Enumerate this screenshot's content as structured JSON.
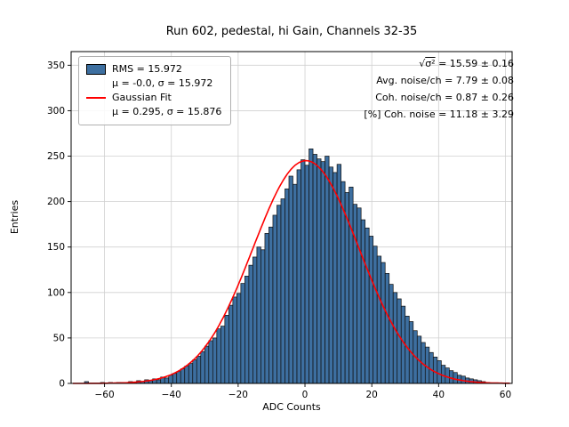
{
  "title": "Run 602, pedestal, hi Gain, Channels 32-35",
  "axes": {
    "xlabel": "ADC Counts",
    "ylabel": "Entries",
    "xlim": [
      -70,
      62
    ],
    "ylim": [
      0,
      365
    ],
    "xticks": [
      -60,
      -40,
      -20,
      0,
      20,
      40,
      60
    ],
    "yticks": [
      0,
      50,
      100,
      150,
      200,
      250,
      300,
      350
    ]
  },
  "legend": {
    "entries": [
      {
        "type": "patch",
        "color": "#3d6fa0",
        "line1": "RMS = 15.972",
        "line2": "μ = -0.0, σ = 15.972"
      },
      {
        "type": "line",
        "color": "#ff0000",
        "line1": "Gaussian Fit",
        "line2": "μ = 0.295, σ = 15.876"
      }
    ]
  },
  "annotations": {
    "line1_prefix": "√",
    "line1_radicand": "σ²",
    "line1_rest": " = 15.59 ± 0.16",
    "lines": [
      "Avg. noise/ch = 7.79 ± 0.08",
      "Coh. noise/ch = 0.87 ± 0.26",
      "[%] Coh. noise = 11.18 ± 3.29"
    ]
  },
  "chart_data": {
    "type": "bar",
    "subtype": "histogram-with-gaussian-fit",
    "title": "Run 602, pedestal, hi Gain, Channels 32-35",
    "xlabel": "ADC Counts",
    "ylabel": "Entries",
    "xlim": [
      -70,
      62
    ],
    "ylim": [
      0,
      365
    ],
    "grid": true,
    "legend_position": "upper-left",
    "bin_start": -66.0,
    "bin_width": 1.2,
    "counts": [
      2,
      0,
      0,
      0,
      1,
      0,
      1,
      0,
      1,
      1,
      1,
      2,
      1,
      3,
      2,
      4,
      3,
      5,
      4,
      7,
      6,
      9,
      11,
      13,
      16,
      19,
      22,
      26,
      30,
      35,
      41,
      47,
      50,
      60,
      63,
      75,
      86,
      95,
      99,
      110,
      118,
      130,
      139,
      150,
      147,
      165,
      172,
      185,
      196,
      203,
      214,
      228,
      219,
      235,
      246,
      240,
      258,
      252,
      247,
      244,
      250,
      238,
      232,
      241,
      222,
      210,
      216,
      197,
      193,
      180,
      171,
      162,
      151,
      140,
      133,
      121,
      109,
      100,
      93,
      85,
      74,
      68,
      58,
      52,
      45,
      40,
      34,
      29,
      25,
      20,
      17,
      14,
      12,
      9,
      8,
      6,
      5,
      4,
      3,
      2,
      1
    ],
    "histogram_stats": {
      "rms": 15.972,
      "mu": -0.0,
      "sigma": 15.972
    },
    "fit": {
      "name": "Gaussian Fit",
      "mu": 0.295,
      "sigma": 15.876,
      "amplitude": 245
    },
    "derived": {
      "sqrt_mean_sigma2": "15.59 ± 0.16",
      "avg_noise_per_ch": "7.79 ± 0.08",
      "coh_noise_per_ch": "0.87 ± 0.26",
      "pct_coh_noise": "11.18 ± 3.29"
    },
    "colors": {
      "bar_fill": "#3d6fa0",
      "bar_edge": "#101010",
      "fit_line": "#ff0000",
      "grid": "#d0d0d0",
      "frame": "#000000"
    }
  }
}
